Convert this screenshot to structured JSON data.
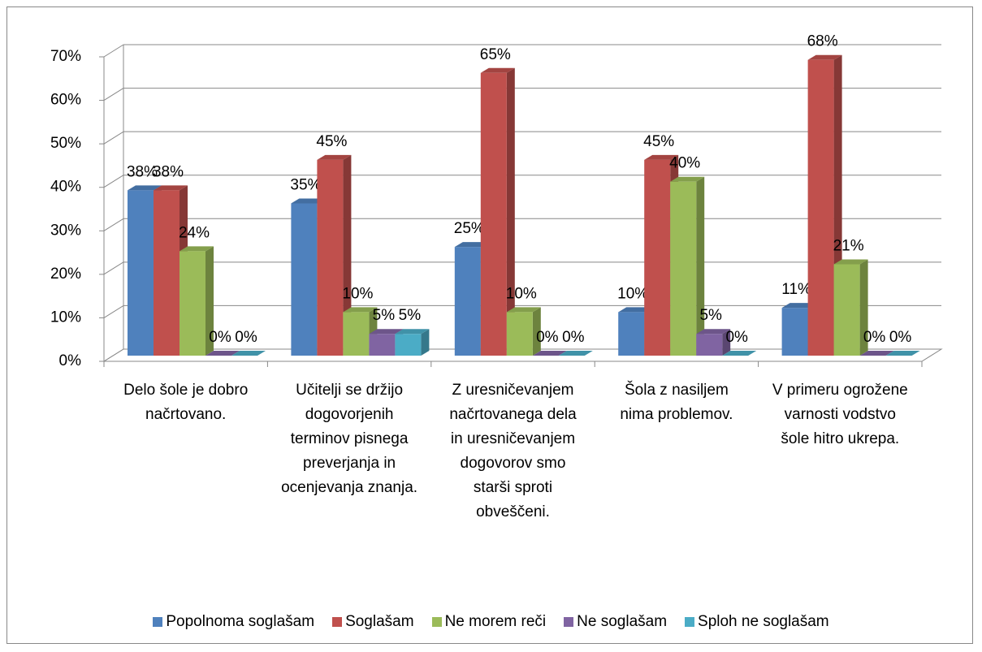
{
  "chart_data": {
    "type": "bar3d",
    "categories": [
      "Delo šole je dobro načrtovano.",
      "Učitelji se držijo dogovorjenih terminov pisnega preverjanja in ocenjevanja znanja.",
      "Z uresničevanjem načrtovanega dela in uresničevanjem dogovorov smo starši sproti obveščeni.",
      "Šola z nasiljem nima problemov.",
      "V primeru ogrožene varnosti vodstvo šole hitro ukrepa."
    ],
    "series": [
      {
        "name": "Popolnoma soglašam",
        "color": "#4f81bd",
        "values": [
          38,
          35,
          25,
          10,
          11
        ],
        "value_labels": [
          "38%",
          "35%",
          "25%",
          "10%",
          "11%"
        ]
      },
      {
        "name": "Soglašam",
        "color": "#c0504d",
        "values": [
          38,
          45,
          65,
          45,
          68
        ],
        "value_labels": [
          "38%",
          "45%",
          "65%",
          "45%",
          "68%"
        ]
      },
      {
        "name": "Ne morem reči",
        "color": "#9bbb59",
        "values": [
          24,
          10,
          10,
          40,
          21
        ],
        "value_labels": [
          "24%",
          "10%",
          "10%",
          "40%",
          "21%"
        ]
      },
      {
        "name": "Ne soglašam",
        "color": "#8064a2",
        "values": [
          0,
          5,
          0,
          5,
          0
        ],
        "value_labels": [
          "0%",
          "5%",
          "0%",
          "5%",
          "0%"
        ]
      },
      {
        "name": "Sploh ne soglašam",
        "color": "#4bacc6",
        "values": [
          0,
          5,
          0,
          0,
          0
        ],
        "value_labels": [
          "0%",
          "5%",
          "0%",
          "0%",
          "0%"
        ]
      }
    ],
    "ylim": [
      0,
      70
    ],
    "yticks": [
      {
        "value": 0,
        "label": "0%"
      },
      {
        "value": 10,
        "label": "10%"
      },
      {
        "value": 20,
        "label": "20%"
      },
      {
        "value": 30,
        "label": "30%"
      },
      {
        "value": 40,
        "label": "40%"
      },
      {
        "value": 50,
        "label": "50%"
      },
      {
        "value": 60,
        "label": "60%"
      },
      {
        "value": 70,
        "label": "70%"
      }
    ],
    "grid": true,
    "legend": "bottom"
  }
}
